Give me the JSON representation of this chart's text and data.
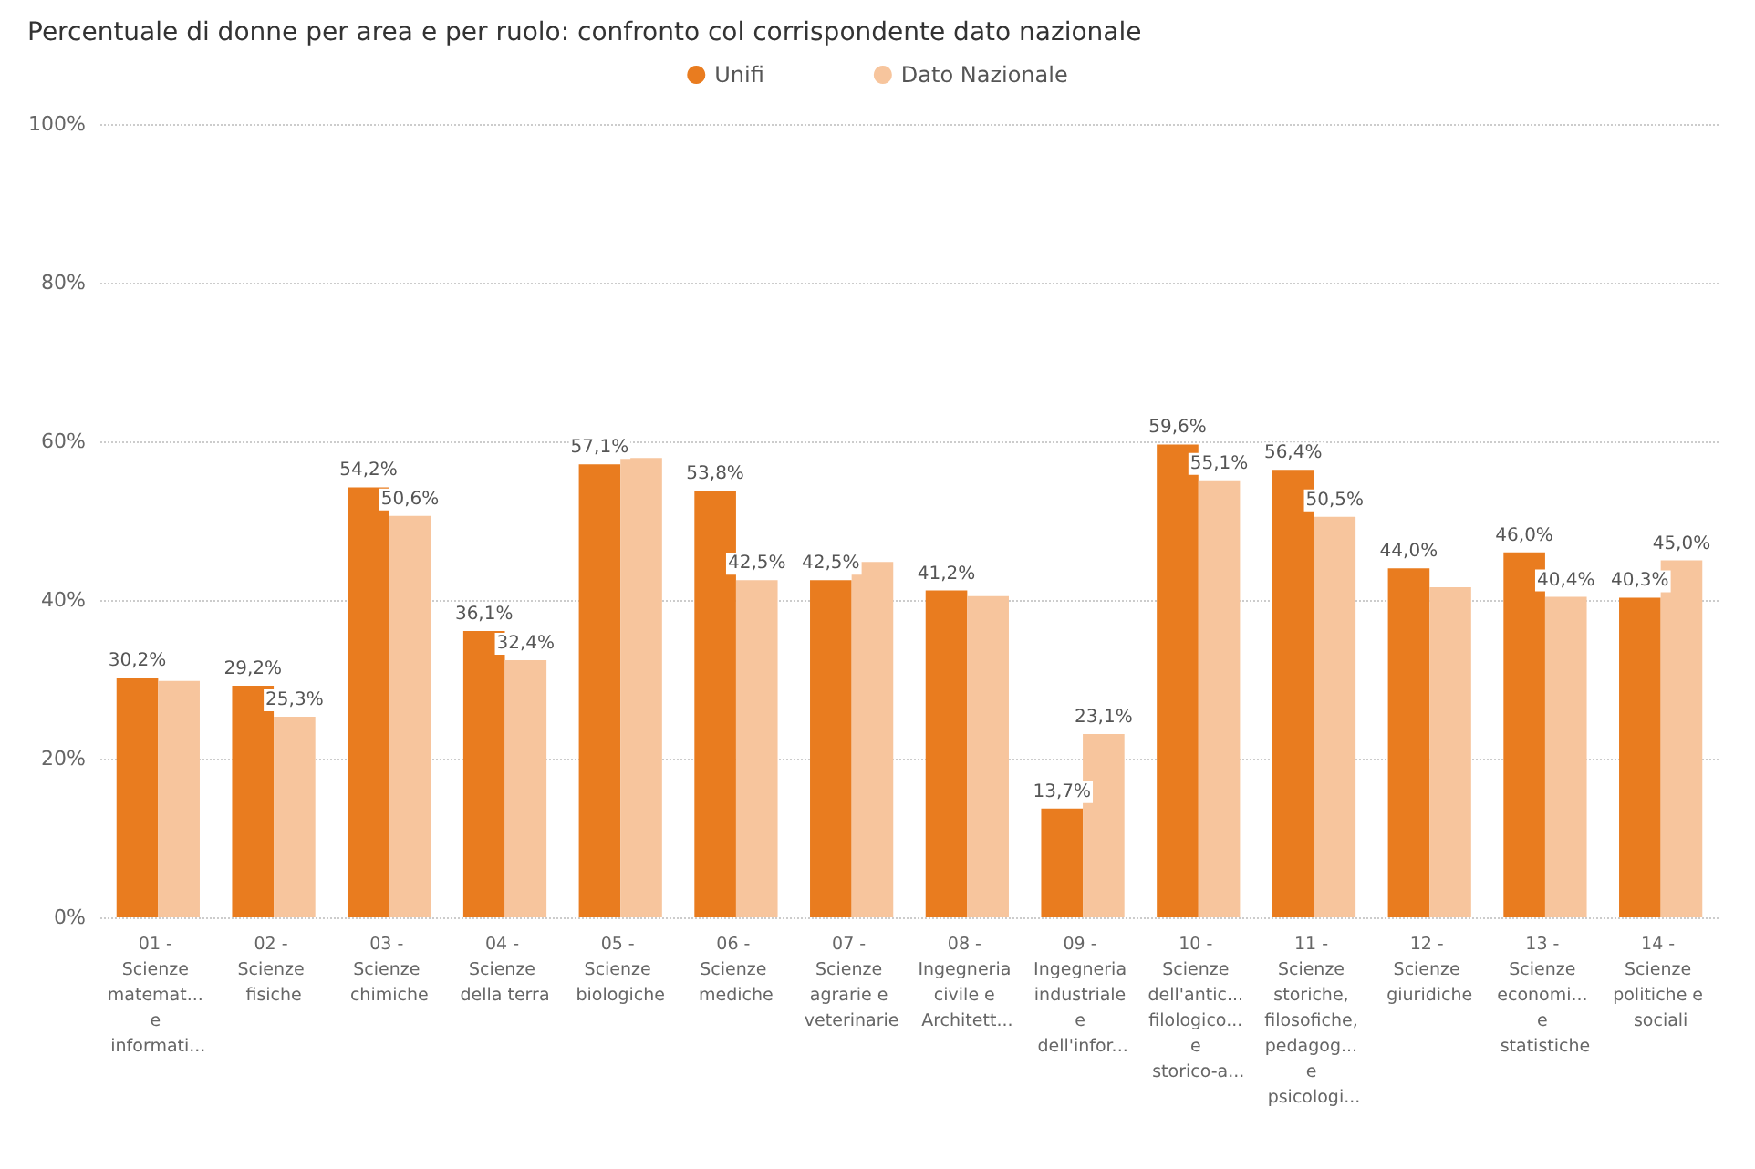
{
  "chart_data": {
    "type": "bar",
    "title": "Percentuale di donne per area e per ruolo: confronto col corrispondente dato nazionale",
    "categories": [
      "01 - Scienze matemat... e informati...",
      "02 - Scienze fisiche",
      "03 - Scienze chimiche",
      "04 - Scienze della terra",
      "05 - Scienze biologiche",
      "06 - Scienze mediche",
      "07 - Scienze agrarie e veterinarie",
      "08 - Ingegneria civile e Architett...",
      "09 - Ingegneria industriale e dell'infor...",
      "10 - Scienze dell'antic... filologico... e storico-a...",
      "11 - Scienze storiche, filosofiche, pedagog... e psicologi...",
      "12 - Scienze giuridiche",
      "13 - Scienze economi... e statistiche",
      "14 - Scienze politiche e sociali"
    ],
    "series": [
      {
        "name": "Unifi",
        "color": "#e97c1f",
        "values": [
          30.2,
          29.2,
          54.2,
          36.1,
          57.1,
          53.8,
          42.5,
          41.2,
          13.7,
          59.6,
          56.4,
          44.0,
          46.0,
          40.3
        ],
        "value_labels": [
          "30,2%",
          "29,2%",
          "54,2%",
          "36,1%",
          "57,1%",
          "53,8%",
          "42,5%",
          "41,2%",
          "13,7%",
          "59,6%",
          "56,4%",
          "44,0%",
          "46,0%",
          "40,3%"
        ]
      },
      {
        "name": "Dato Nazionale",
        "color": "#f7c59d",
        "values": [
          29.8,
          25.3,
          50.6,
          32.4,
          57.9,
          42.5,
          44.8,
          40.5,
          23.1,
          55.1,
          50.5,
          41.6,
          40.4,
          45.0
        ],
        "value_labels": [
          null,
          "25,3%",
          "50,6%",
          "32,4%",
          null,
          "42,5%",
          null,
          null,
          "23,1%",
          "55,1%",
          "50,5%",
          null,
          "40,4%",
          "45,0%"
        ]
      }
    ],
    "ylim": [
      0,
      100
    ],
    "yticks": [
      {
        "value": 0,
        "label": "0%"
      },
      {
        "value": 20,
        "label": "20%"
      },
      {
        "value": 40,
        "label": "40%"
      },
      {
        "value": 60,
        "label": "60%"
      },
      {
        "value": 80,
        "label": "80%"
      },
      {
        "value": 100,
        "label": "100%"
      }
    ],
    "grid": "y",
    "legend": "top"
  }
}
